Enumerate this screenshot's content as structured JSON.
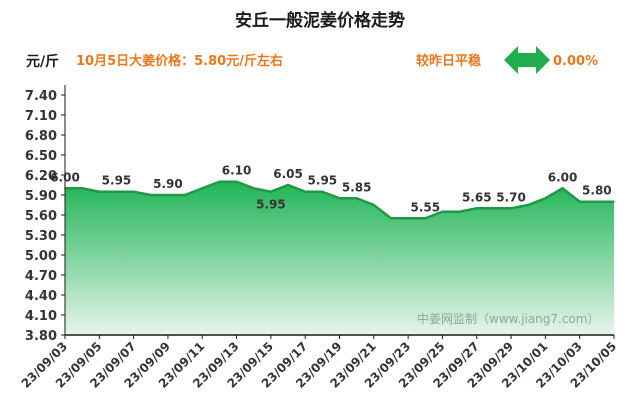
{
  "header": {
    "title": "安丘一般泥姜价格走势",
    "unit": "元/斤",
    "price_text": "10月5日大姜价格：5.80元/斤左右",
    "compare_text": "较昨日平稳",
    "change_text": "0.00%",
    "arrow_icon": "double-arrow-icon",
    "arrow_color": "#1fae4b"
  },
  "watermark": "中姜网监制（www.jiang7.com）",
  "colors": {
    "accent_orange": "#e8781e",
    "line": "#1f9a44",
    "fill_top": "#20b457",
    "fill_bottom": "#e6f5ea",
    "axis": "#1a1a1a"
  },
  "chart_data": {
    "type": "area",
    "x": [
      "23/09/03",
      "23/09/04",
      "23/09/05",
      "23/09/06",
      "23/09/07",
      "23/09/08",
      "23/09/09",
      "23/09/10",
      "23/09/11",
      "23/09/12",
      "23/09/13",
      "23/09/14",
      "23/09/15",
      "23/09/16",
      "23/09/17",
      "23/09/18",
      "23/09/19",
      "23/09/20",
      "23/09/21",
      "23/09/22",
      "23/09/23",
      "23/09/24",
      "23/09/25",
      "23/09/26",
      "23/09/27",
      "23/09/28",
      "23/09/29",
      "23/09/30",
      "23/10/01",
      "23/10/02",
      "23/10/03",
      "23/10/04",
      "23/10/05"
    ],
    "values": [
      6.0,
      6.0,
      5.95,
      5.95,
      5.95,
      5.9,
      5.9,
      5.9,
      6.0,
      6.1,
      6.1,
      6.0,
      5.95,
      6.05,
      5.95,
      5.95,
      5.85,
      5.85,
      5.75,
      5.55,
      5.55,
      5.55,
      5.65,
      5.65,
      5.7,
      5.7,
      5.7,
      5.75,
      5.85,
      6.0,
      5.8,
      5.8,
      5.8
    ],
    "data_labels": [
      {
        "index": 0,
        "text": "6.00"
      },
      {
        "index": 3,
        "text": "5.95"
      },
      {
        "index": 6,
        "text": "5.90"
      },
      {
        "index": 10,
        "text": "6.10"
      },
      {
        "index": 12,
        "text": "5.95",
        "below": true
      },
      {
        "index": 13,
        "text": "6.05"
      },
      {
        "index": 15,
        "text": "5.95"
      },
      {
        "index": 17,
        "text": "5.85"
      },
      {
        "index": 21,
        "text": "5.55"
      },
      {
        "index": 24,
        "text": "5.65"
      },
      {
        "index": 26,
        "text": "5.70"
      },
      {
        "index": 29,
        "text": "6.00"
      },
      {
        "index": 31,
        "text": "5.80"
      }
    ],
    "xtick_labels": [
      "23/09/03",
      "23/09/05",
      "23/09/07",
      "23/09/09",
      "23/09/11",
      "23/09/13",
      "23/09/15",
      "23/09/17",
      "23/09/19",
      "23/09/21",
      "23/09/23",
      "23/09/25",
      "23/09/27",
      "23/09/29",
      "23/10/01",
      "23/10/03",
      "23/10/05"
    ],
    "yticks": [
      "3.80",
      "4.10",
      "4.40",
      "4.70",
      "5.00",
      "5.30",
      "5.60",
      "5.90",
      "6.20",
      "6.50",
      "6.80",
      "7.10",
      "7.40"
    ],
    "ylim": [
      3.8,
      7.4
    ],
    "grid": false
  }
}
